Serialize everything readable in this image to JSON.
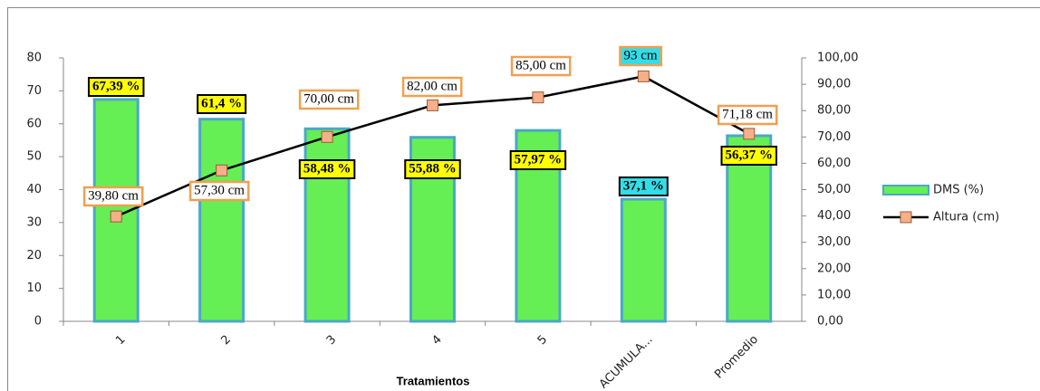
{
  "chart_data": {
    "type": "bar_line",
    "x_label": "Tratamientos",
    "categories": [
      "1",
      "2",
      "3",
      "4",
      "5",
      "ACUMULA...",
      "Promedio"
    ],
    "series": [
      {
        "name": "DMS  (%)",
        "type": "bar",
        "color": "#66ee55",
        "edge_color": "#4aa8c8",
        "values": [
          67.39,
          61.4,
          58.48,
          55.88,
          57.97,
          37.1,
          56.37
        ],
        "value_labels": [
          "67,39 %",
          "61,4 %",
          "58,48 %",
          "55,88 %",
          "57,97 %",
          "37,1 %",
          "56,37 %"
        ],
        "label_colors": [
          "#ffff00",
          "#ffff00",
          "#ffff00",
          "#ffff00",
          "#ffff00",
          "#33dde8",
          "#ffff00"
        ]
      },
      {
        "name": "Altura (cm)",
        "type": "line",
        "axis": "y2",
        "color": "#000000",
        "marker_color": "#f5b08a",
        "values": [
          39.8,
          57.3,
          70.0,
          82.0,
          85.0,
          93,
          71.18
        ],
        "value_labels": [
          "39,80 cm",
          "57,30 cm",
          "70,00 cm",
          "82,00 cm",
          "85,00 cm",
          "93 cm",
          "71,18 cm"
        ],
        "label_colors": [
          "#ffffff",
          "#ffffff",
          "#ffffff",
          "#ffffff",
          "#ffffff",
          "#33dde8",
          "#ffffff"
        ]
      }
    ],
    "ylim": [
      0,
      80
    ],
    "yticks": [
      0,
      10,
      20,
      30,
      40,
      50,
      60,
      70,
      80
    ],
    "y2lim": [
      0,
      100
    ],
    "y2ticks": [
      {
        "value": 0,
        "label": "0,00"
      },
      {
        "value": 10,
        "label": "10,00"
      },
      {
        "value": 20,
        "label": "20,00"
      },
      {
        "value": 30,
        "label": "30,00"
      },
      {
        "value": 40,
        "label": "40,00"
      },
      {
        "value": 50,
        "label": "50,00"
      },
      {
        "value": 60,
        "label": "60,00"
      },
      {
        "value": 70,
        "label": "70,00"
      },
      {
        "value": 80,
        "label": "80,00"
      },
      {
        "value": 90,
        "label": "90,00"
      },
      {
        "value": 100,
        "label": "100,00"
      }
    ],
    "legend": "right"
  }
}
